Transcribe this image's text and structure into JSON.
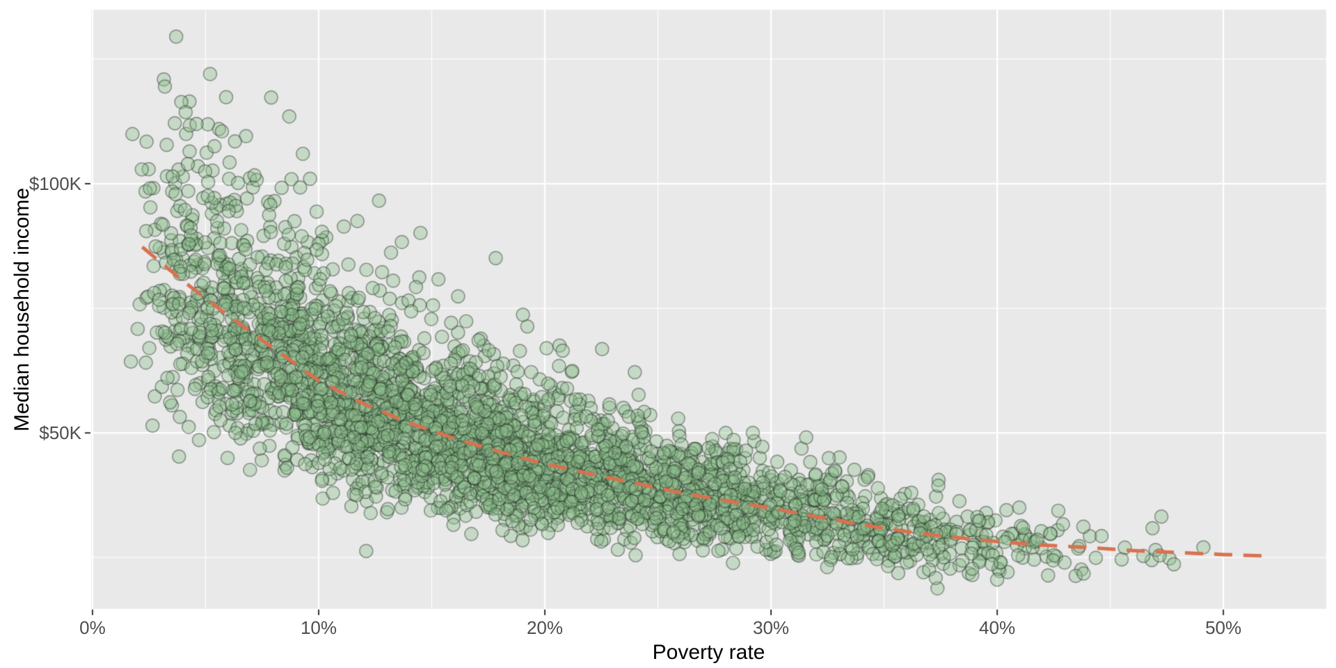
{
  "page": {
    "background": "#FFFFFF"
  },
  "chart_data": {
    "type": "scatter",
    "title": "",
    "xlabel": "Poverty rate",
    "ylabel": "Median household income",
    "x_unit": "percent",
    "y_unit": "thousand USD",
    "x_axis": {
      "range": [
        -0.06,
        54.55
      ],
      "major_ticks": [
        {
          "value": 0,
          "label": "0%"
        },
        {
          "value": 10,
          "label": "10%"
        },
        {
          "value": 20,
          "label": "20%"
        },
        {
          "value": 30,
          "label": "30%"
        },
        {
          "value": 40,
          "label": "40%"
        },
        {
          "value": 50,
          "label": "50%"
        }
      ],
      "minor_ticks": [
        5,
        15,
        25,
        35,
        45
      ]
    },
    "y_axis": {
      "range": [
        14.7,
        134.9
      ],
      "major_ticks": [
        {
          "value": 50,
          "label": "$50K"
        },
        {
          "value": 100,
          "label": "$100K"
        }
      ],
      "minor_ticks": [
        25,
        75,
        125
      ]
    },
    "style": {
      "panel_bg": "#E9E9E9",
      "grid_color": "#FFFFFF",
      "grid_major_width": 2.4,
      "grid_minor_width": 1.2,
      "tick_mark_color": "#333333",
      "tick_label_color": "#4D4D4D",
      "axis_title_color": "#000000",
      "point_fill": "#8FBC8F",
      "point_fill_alpha": 0.38,
      "point_stroke": "#1E2D1E",
      "point_stroke_alpha": 0.42,
      "point_radius": 9.5,
      "point_stroke_width": 1.7,
      "trend_color": "#D9714E",
      "trend_width": 5,
      "trend_dash": [
        26,
        16
      ]
    },
    "trend_line": {
      "kind": "loess-dashed",
      "points": [
        [
          2.2,
          87.3
        ],
        [
          4,
          80.5
        ],
        [
          6,
          73.5
        ],
        [
          8,
          67.0
        ],
        [
          10,
          60.5
        ],
        [
          12,
          55.8
        ],
        [
          14,
          52.0
        ],
        [
          16,
          48.9
        ],
        [
          18,
          46.2
        ],
        [
          20,
          43.8
        ],
        [
          22,
          41.8
        ],
        [
          24,
          39.9
        ],
        [
          26,
          38.0
        ],
        [
          28,
          36.4
        ],
        [
          30,
          34.9
        ],
        [
          32,
          33.2
        ],
        [
          34,
          31.6
        ],
        [
          36,
          30.2
        ],
        [
          38,
          29.1
        ],
        [
          40,
          28.2
        ],
        [
          42,
          27.5
        ],
        [
          44,
          27.0
        ],
        [
          46,
          26.4
        ],
        [
          48,
          26.0
        ],
        [
          50,
          25.6
        ],
        [
          51.9,
          25.3
        ]
      ]
    },
    "scatter_points": {
      "count": 3400,
      "seed": 1337,
      "x_beta": {
        "a": 1.9,
        "b": 4.0,
        "min": 1.6,
        "max": 54.0
      },
      "noise": {
        "base_sd": 0.205,
        "slope": 0.0022,
        "min_sd": 0.125
      },
      "y_clamp": [
        16,
        133
      ],
      "outliers": [
        [
          3.7,
          129.5
        ],
        [
          3.2,
          119.5
        ],
        [
          5.2,
          122.0
        ],
        [
          7.9,
          117.3
        ],
        [
          4.6,
          112.0
        ],
        [
          8.7,
          113.5
        ],
        [
          6.3,
          108.5
        ],
        [
          9.3,
          106.0
        ]
      ]
    }
  }
}
